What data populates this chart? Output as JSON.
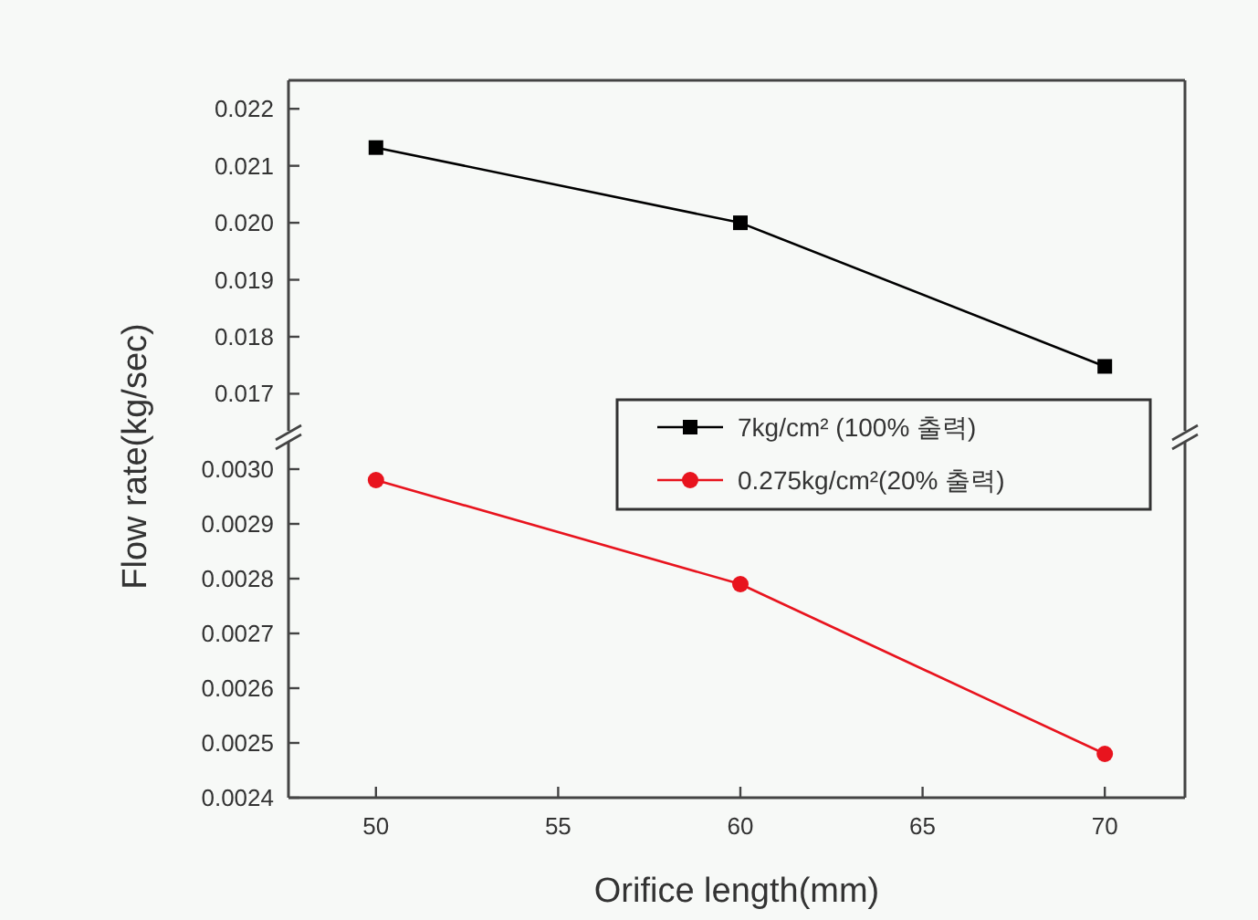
{
  "chart_data": [
    {
      "type": "line",
      "ylabel": "Flow rate(kg/sec)",
      "x": [
        50,
        60,
        70
      ],
      "xlim": [
        47.6,
        72.2
      ],
      "ylim": [
        0.01635,
        0.0225
      ],
      "yticks": [
        0.017,
        0.018,
        0.019,
        {
          "value": 0.02,
          "label": "0.020"
        },
        0.021,
        0.022
      ],
      "tick_labels": "y",
      "marker": "square",
      "line_style": "solid",
      "legend": "bottom right",
      "series": [
        {
          "name": "7kg/cm² (100% 출력)",
          "color": "#000000",
          "values": [
            0.02132,
            0.02,
            0.01748
          ]
        }
      ]
    },
    {
      "type": "line",
      "xlabel": "Orifice length(mm)",
      "x": [
        50,
        60,
        70
      ],
      "xlim": [
        47.6,
        72.2
      ],
      "xticks": [
        50,
        55,
        60,
        65,
        70
      ],
      "ylim": [
        0.0024,
        0.00305
      ],
      "yticks": [
        0.0024,
        0.0025,
        0.0026,
        0.0027,
        0.0028,
        0.0029,
        {
          "value": 0.003,
          "label": "0.0030"
        }
      ],
      "marker": "circle",
      "line_style": "solid",
      "legend": "top right",
      "series": [
        {
          "name": "0.275kg/cm²(20% 출력)",
          "color": "#e8141e",
          "values": [
            0.00298,
            0.00279,
            0.00248
          ]
        }
      ]
    }
  ]
}
